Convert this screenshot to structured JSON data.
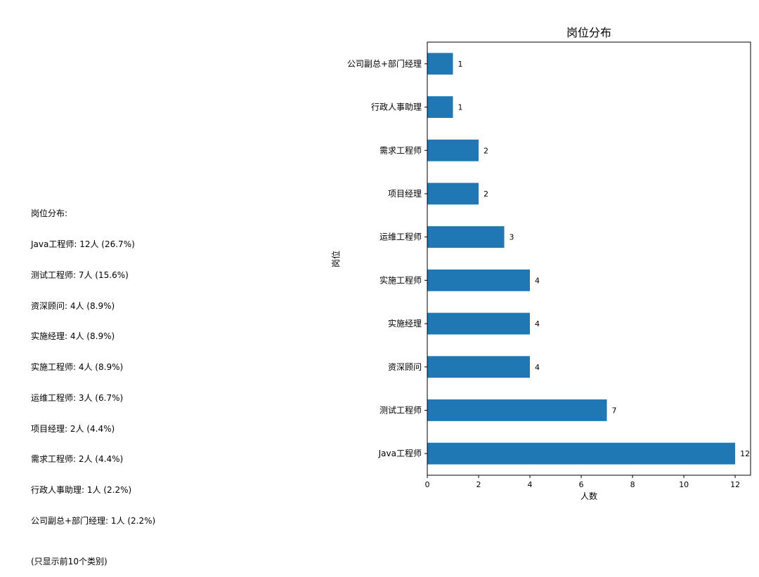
{
  "summary": {
    "heading": "岗位分布:",
    "lines": [
      "Java工程师: 12人 (26.7%)",
      "测试工程师: 7人 (15.6%)",
      "资深顾问: 4人 (8.9%)",
      "实施经理: 4人 (8.9%)",
      "实施工程师: 4人 (8.9%)",
      "运维工程师: 3人 (6.7%)",
      "项目经理: 2人 (4.4%)",
      "需求工程师: 2人 (4.4%)",
      "行政人事助理: 1人 (2.2%)",
      "公司副总+部门经理: 1人 (2.2%)"
    ],
    "note": "(只显示前10个类别)"
  },
  "chart_data": {
    "type": "bar",
    "orientation": "horizontal",
    "title": "岗位分布",
    "xlabel": "人数",
    "ylabel": "岗位",
    "categories": [
      "Java工程师",
      "测试工程师",
      "资深顾问",
      "实施经理",
      "实施工程师",
      "运维工程师",
      "项目经理",
      "需求工程师",
      "行政人事助理",
      "公司副总+部门经理"
    ],
    "values": [
      12,
      7,
      4,
      4,
      4,
      3,
      2,
      2,
      1,
      1
    ],
    "data_labels": [
      "12",
      "7",
      "4",
      "4",
      "4",
      "3",
      "2",
      "2",
      "1",
      "1"
    ],
    "xlim": [
      0,
      12.6
    ],
    "xticks": [
      "0",
      "2",
      "4",
      "6",
      "8",
      "10",
      "12"
    ],
    "bar_color": "#1f77b4",
    "grid": false,
    "legend": "none"
  }
}
